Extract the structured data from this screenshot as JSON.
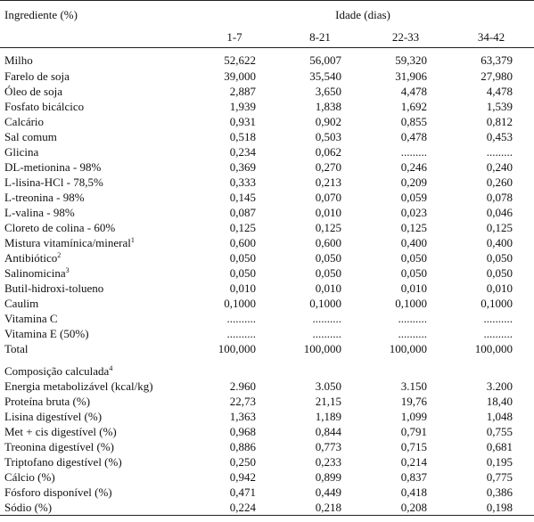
{
  "header": {
    "ingredient_label": "Ingrediente (%)",
    "age_label": "Idade (dias)",
    "periods": [
      "1-7",
      "8-21",
      "22-33",
      "34-42"
    ]
  },
  "ingredients": [
    {
      "name": "Milho",
      "values": [
        "52,622",
        "56,007",
        "59,320",
        "63,379"
      ]
    },
    {
      "name": "Farelo de soja",
      "values": [
        "39,000",
        "35,540",
        "31,906",
        "27,980"
      ]
    },
    {
      "name": "Óleo de soja",
      "values": [
        "2,887",
        "3,650",
        "4,478",
        "4,478"
      ]
    },
    {
      "name": "Fosfato bicálcico",
      "values": [
        "1,939",
        "1,838",
        "1,692",
        "1,539"
      ]
    },
    {
      "name": "Calcário",
      "values": [
        "0,931",
        "0,902",
        "0,855",
        "0,812"
      ]
    },
    {
      "name": "Sal comum",
      "values": [
        "0,518",
        "0,503",
        "0,478",
        "0,453"
      ]
    },
    {
      "name": "Glicina",
      "values": [
        "0,234",
        "0,062",
        ".........",
        "........."
      ]
    },
    {
      "name": "DL-metionina - 98%",
      "values": [
        "0,369",
        "0,270",
        "0,246",
        "0,240"
      ]
    },
    {
      "name": "L-lisina-HCl - 78,5%",
      "values": [
        "0,333",
        "0,213",
        "0,209",
        "0,260"
      ]
    },
    {
      "name": "L-treonina - 98%",
      "values": [
        "0,145",
        "0,070",
        "0,059",
        "0,078"
      ]
    },
    {
      "name": "L-valina - 98%",
      "values": [
        "0,087",
        "0,010",
        "0,023",
        "0,046"
      ]
    },
    {
      "name": "Cloreto de colina - 60%",
      "values": [
        "0,125",
        "0,125",
        "0,125",
        "0,125"
      ]
    },
    {
      "name": "Mistura vitamínica/mineral",
      "sup": "1",
      "values": [
        "0,600",
        "0,600",
        "0,400",
        "0,400"
      ]
    },
    {
      "name": "Antibiótico",
      "sup": "2",
      "values": [
        "0,050",
        "0,050",
        "0,050",
        "0,050"
      ]
    },
    {
      "name": "Salinomicina",
      "sup": "3",
      "values": [
        "0,050",
        "0,050",
        "0,050",
        "0,050"
      ]
    },
    {
      "name": "Butil-hidroxi-tolueno",
      "values": [
        "0,010",
        "0,010",
        "0,010",
        "0,010"
      ]
    },
    {
      "name": "Caulim",
      "values": [
        "0,1000",
        "0,1000",
        "0,1000",
        "0,1000"
      ]
    },
    {
      "name": "Vitamina C",
      "values": [
        "..........",
        "..........",
        "..........",
        ".........."
      ]
    },
    {
      "name": "Vitamina E (50%)",
      "values": [
        "..........",
        "..........",
        "..........",
        ".........."
      ]
    },
    {
      "name": "Total",
      "values": [
        "100,000",
        "100,000",
        "100,000",
        "100,000"
      ]
    }
  ],
  "composition": {
    "title": "Composição calculada",
    "title_sup": "4",
    "rows": [
      {
        "name": "Energia metabolizável (kcal/kg)",
        "values": [
          "2.960",
          "3.050",
          "3.150",
          "3.200"
        ]
      },
      {
        "name": "Proteína bruta (%)",
        "values": [
          "22,73",
          "21,15",
          "19,76",
          "18,40"
        ]
      },
      {
        "name": "Lisina digestível (%)",
        "values": [
          "1,363",
          "1,189",
          "1,099",
          "1,048"
        ]
      },
      {
        "name": "Met + cis digestível (%)",
        "values": [
          "0,968",
          "0,844",
          "0,791",
          "0,755"
        ]
      },
      {
        "name": "Treonina digestível (%)",
        "values": [
          "0,886",
          "0,773",
          "0,715",
          "0,681"
        ]
      },
      {
        "name": "Triptofano digestível (%)",
        "values": [
          "0,250",
          "0,233",
          "0,214",
          "0,195"
        ]
      },
      {
        "name": "Cálcio (%)",
        "values": [
          "0,942",
          "0,899",
          "0,837",
          "0,775"
        ]
      },
      {
        "name": "Fósforo disponível (%)",
        "values": [
          "0,471",
          "0,449",
          "0,418",
          "0,386"
        ]
      },
      {
        "name": "Sódio (%)",
        "values": [
          "0,224",
          "0,218",
          "0,208",
          "0,198"
        ]
      }
    ]
  }
}
